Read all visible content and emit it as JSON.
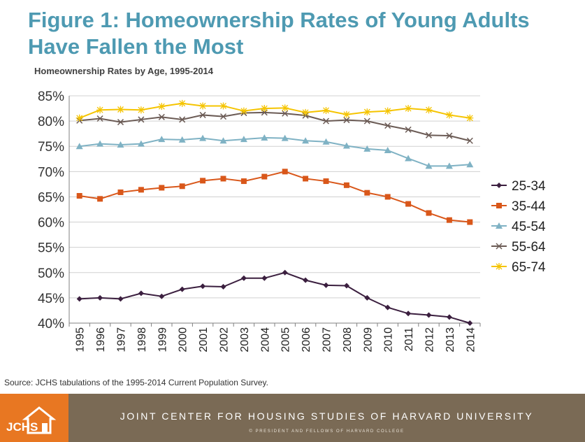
{
  "header": {
    "title": "Figure 1: Homeownership Rates of Young Adults Have Fallen the Most"
  },
  "source": "Source: JCHS  tabulations of the 1995-2014 Current Population Survey.",
  "footer": {
    "logo": "JCHS",
    "org": "JOINT CENTER FOR HOUSING STUDIES OF HARVARD UNIVERSITY",
    "copyright": "© PRESIDENT AND FELLOWS OF HARVARD COLLEGE",
    "logo_color": "#e87722",
    "band_color": "#7a6a55"
  },
  "chart_data": {
    "type": "line",
    "title": "Homeownership Rates by Age, 1995-2014",
    "xlabel": "",
    "ylabel": "",
    "x": [
      "1995",
      "1996",
      "1997",
      "1998",
      "1999",
      "2000",
      "2001",
      "2002",
      "2003",
      "2004",
      "2005",
      "2006",
      "2007",
      "2008",
      "2009",
      "2010",
      "2011",
      "2012",
      "2013",
      "2014"
    ],
    "ylim": [
      40,
      85
    ],
    "yticks": [
      "40%",
      "45%",
      "50%",
      "55%",
      "60%",
      "65%",
      "70%",
      "75%",
      "80%",
      "85%"
    ],
    "grid": "horizontal",
    "legend": "right",
    "series": [
      {
        "name": "25-34",
        "color": "#3b1f3f",
        "marker": "diamond",
        "values": [
          44.8,
          45.0,
          44.8,
          45.9,
          45.3,
          46.7,
          47.3,
          47.2,
          48.9,
          48.9,
          50.0,
          48.5,
          47.5,
          47.4,
          45.0,
          43.1,
          41.9,
          41.6,
          41.2,
          40.0
        ]
      },
      {
        "name": "35-44",
        "color": "#d9571a",
        "marker": "square",
        "values": [
          65.2,
          64.6,
          65.9,
          66.4,
          66.8,
          67.1,
          68.2,
          68.6,
          68.1,
          69.0,
          70.0,
          68.6,
          68.1,
          67.3,
          65.8,
          65.0,
          63.6,
          61.8,
          60.4,
          60.0
        ]
      },
      {
        "name": "45-54",
        "color": "#7fb2c4",
        "marker": "triangle",
        "values": [
          75.0,
          75.5,
          75.3,
          75.5,
          76.4,
          76.3,
          76.6,
          76.1,
          76.4,
          76.7,
          76.6,
          76.1,
          75.9,
          75.1,
          74.5,
          74.2,
          72.6,
          71.1,
          71.1,
          71.4
        ]
      },
      {
        "name": "55-64",
        "color": "#6b5b55",
        "marker": "x",
        "values": [
          80.1,
          80.5,
          79.8,
          80.3,
          80.8,
          80.3,
          81.2,
          80.9,
          81.6,
          81.7,
          81.5,
          81.1,
          80.0,
          80.2,
          80.0,
          79.1,
          78.3,
          77.2,
          77.1,
          76.1
        ]
      },
      {
        "name": "65-74",
        "color": "#f5c400",
        "marker": "star",
        "values": [
          80.6,
          82.2,
          82.3,
          82.2,
          82.9,
          83.5,
          83.0,
          83.0,
          82.0,
          82.5,
          82.6,
          81.7,
          82.1,
          81.3,
          81.8,
          82.0,
          82.5,
          82.2,
          81.2,
          80.6
        ]
      }
    ]
  }
}
